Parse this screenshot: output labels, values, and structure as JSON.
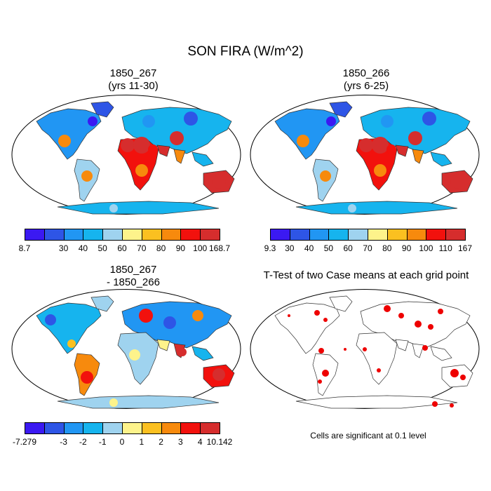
{
  "figure": {
    "title": "SON FIRA (W/m^2)",
    "note": "Cells are significant at 0.1 level"
  },
  "panels": [
    {
      "id": "case1",
      "title_line1": "1850_267",
      "title_line2": "(yrs 11-30)"
    },
    {
      "id": "case2",
      "title_line1": "1850_266",
      "title_line2": "(yrs 6-25)"
    },
    {
      "id": "diff",
      "title_line1": "1850_267",
      "title_line2": "- 1850_266"
    },
    {
      "id": "ttest",
      "title_line1": "T-Test of two Case means at each grid point",
      "title_line2": ""
    }
  ],
  "colorbars": {
    "case1": {
      "colors": [
        "#3b19f2",
        "#2e55e6",
        "#2196f3",
        "#16b4ee",
        "#9fd3ef",
        "#fdf38b",
        "#fbc020",
        "#f78a0d",
        "#f2110d",
        "#d62d2d"
      ],
      "labels": [
        "8.7",
        "30",
        "40",
        "50",
        "60",
        "70",
        "80",
        "90",
        "100",
        "168.7"
      ]
    },
    "case2": {
      "colors": [
        "#3b19f2",
        "#2e55e6",
        "#2196f3",
        "#16b4ee",
        "#9fd3ef",
        "#fdf38b",
        "#fbc020",
        "#f78a0d",
        "#f2110d",
        "#d62d2d"
      ],
      "labels": [
        "9.3",
        "30",
        "40",
        "50",
        "60",
        "70",
        "80",
        "90",
        "100",
        "110",
        "167"
      ]
    },
    "diff": {
      "colors": [
        "#3b19f2",
        "#2e55e6",
        "#2196f3",
        "#16b4ee",
        "#9fd3ef",
        "#fdf38b",
        "#fbc020",
        "#f78a0d",
        "#f2110d",
        "#d62d2d"
      ],
      "labels": [
        "-7.279",
        "-3",
        "-2",
        "-1",
        "0",
        "1",
        "2",
        "3",
        "4",
        "10.142"
      ]
    },
    "significance_color": "#ee0000"
  }
}
